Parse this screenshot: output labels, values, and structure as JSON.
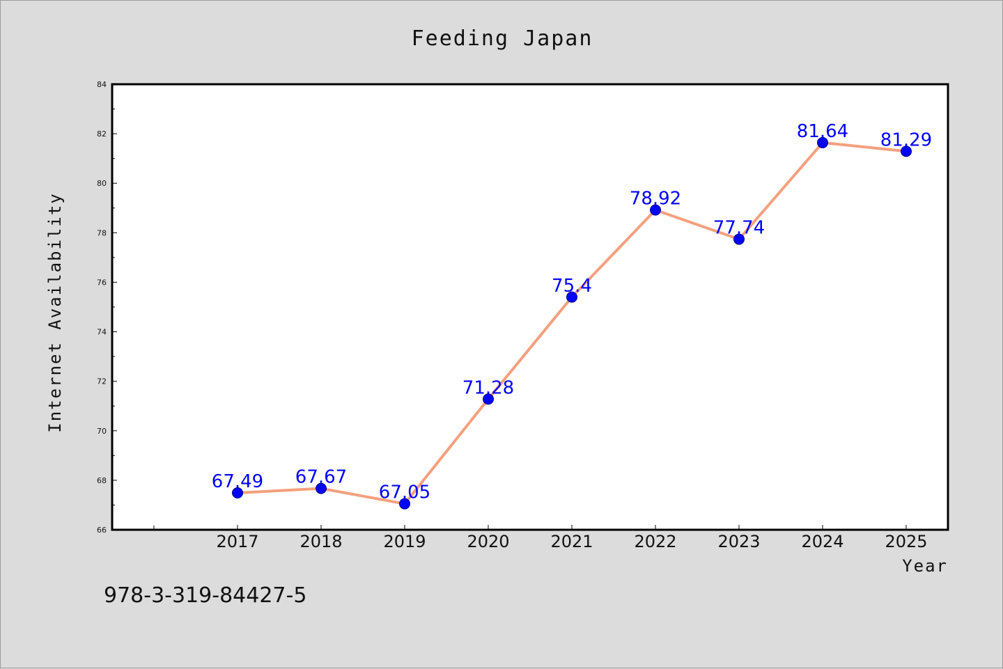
{
  "chart_data": {
    "type": "line",
    "title": "Feeding Japan",
    "xlabel": "Year",
    "ylabel": "Internet Availability",
    "categories": [
      "2017",
      "2018",
      "2019",
      "2020",
      "2021",
      "2022",
      "2023",
      "2024",
      "2025"
    ],
    "series": [
      {
        "values": [
          67.49,
          67.67,
          67.05,
          71.28,
          75.4,
          78.92,
          77.74,
          81.64,
          81.29
        ],
        "labels": [
          "67.49",
          "67.67",
          "67.05",
          "71.28",
          "75.4",
          "78.92",
          "77.74",
          "81.64",
          "81.29"
        ],
        "line_color": "#f4a07e",
        "marker_color": "#0000ff"
      }
    ],
    "ylim": [
      66,
      84
    ],
    "yticks": [
      "66",
      "68",
      "70",
      "72",
      "74",
      "76",
      "78",
      "80",
      "82",
      "84"
    ],
    "grid": false,
    "legend": "none"
  },
  "footer": {
    "isbn": "978-3-319-84427-5"
  }
}
